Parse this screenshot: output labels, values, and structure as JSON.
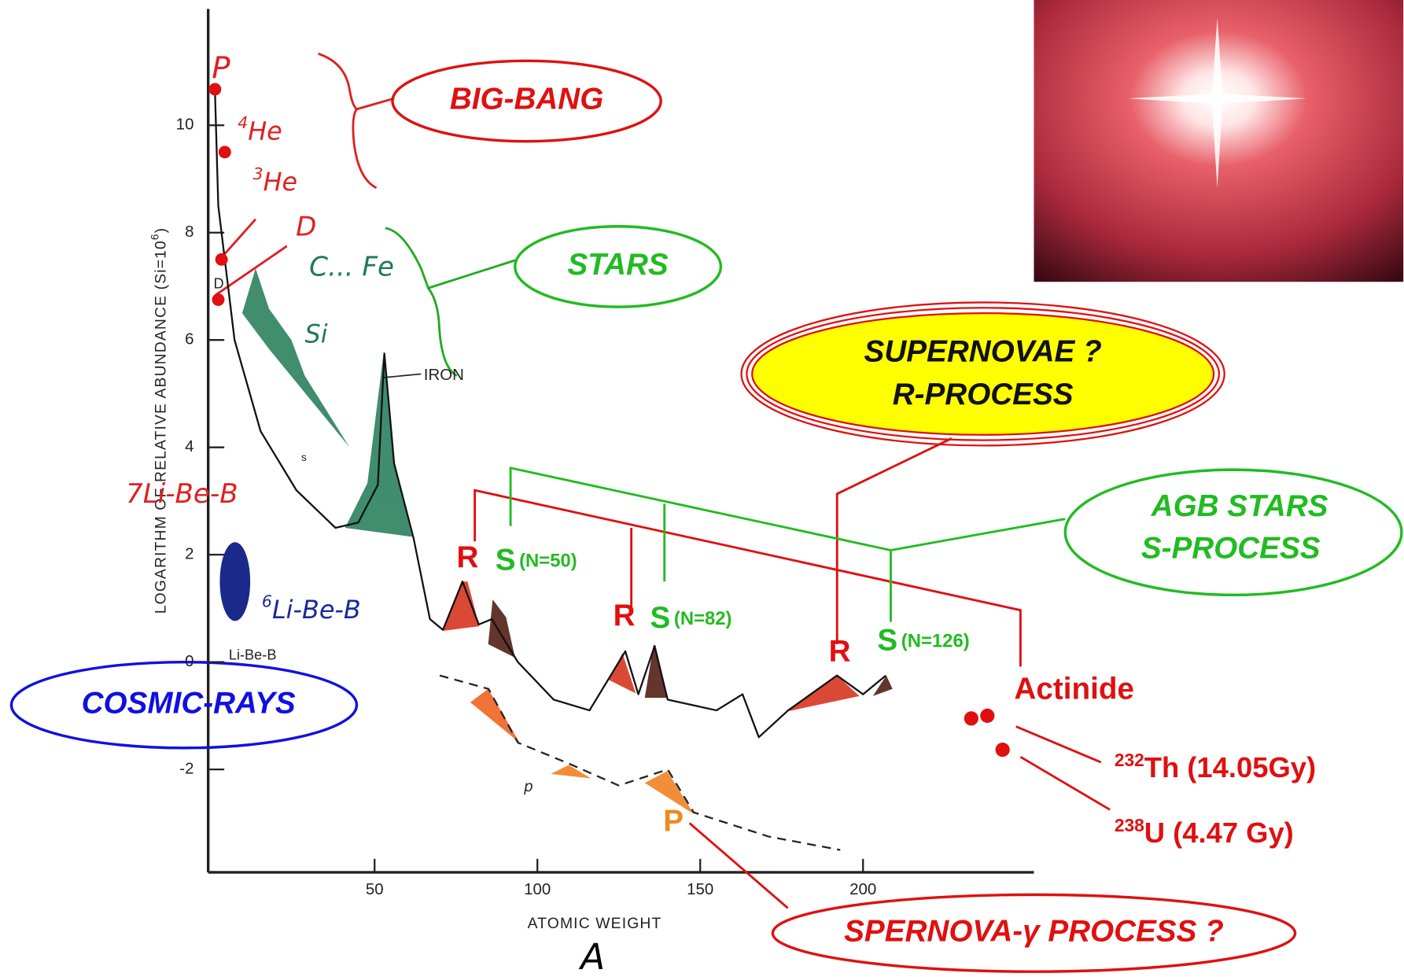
{
  "chart_data": {
    "type": "line",
    "y_label": "LOGARITHM OF RELATIVE ABUNDANCE (Si=10",
    "y_label_sup": "6",
    "y_label_end": ")",
    "x_label": "ATOMIC WEIGHT",
    "x_symbol": "A",
    "xlim": [
      0,
      250
    ],
    "ylim": [
      -4,
      12
    ],
    "xticks": [
      50,
      100,
      150,
      200
    ],
    "yticks": [
      -2,
      0,
      2,
      4,
      6,
      8,
      10
    ],
    "series": [
      {
        "color": "#111111",
        "dashed": false,
        "x": [
          1,
          2,
          7,
          15,
          26,
          38,
          45,
          51,
          53,
          56,
          62,
          67,
          71,
          77,
          82,
          86,
          94,
          105,
          116,
          127,
          131,
          136,
          140,
          155,
          163,
          168,
          177,
          192,
          200,
          207
        ],
        "values": [
          10.6,
          8.5,
          6.0,
          4.3,
          3.2,
          2.5,
          2.6,
          3.3,
          5.75,
          3.7,
          2.3,
          0.8,
          0.6,
          1.5,
          0.7,
          0.8,
          0,
          -0.7,
          -0.9,
          0.2,
          -0.6,
          0.3,
          -0.7,
          -0.9,
          -0.6,
          -1.4,
          -0.9,
          -0.25,
          -0.6,
          -0.25
        ]
      },
      {
        "color": "#222222",
        "dashed": true,
        "x": [
          70,
          85,
          94,
          110,
          125,
          140,
          148,
          171,
          193
        ],
        "values": [
          -0.25,
          -0.5,
          -1.5,
          -1.9,
          -2.3,
          -2.0,
          -2.8,
          -3.25,
          -3.5
        ]
      }
    ],
    "points": {
      "color": "#e01010",
      "x": [
        1,
        4,
        3,
        2
      ],
      "values": [
        10.67,
        9.5,
        7.5,
        6.75
      ]
    },
    "annotations": {
      "p": "P",
      "he4_sup": "4",
      "he4": "He",
      "he3_sup": "3",
      "he3": "He",
      "d": "D",
      "d_small": "D",
      "c_fe": "C... Fe",
      "si": "Si",
      "iron": "IRON",
      "s_small": "s",
      "li7_sup": "7",
      "li7": "Li-Be-B",
      "li6_sup": "6",
      "li6": "Li-Be-B",
      "libeb": "Li-Be-B",
      "p_small": "p",
      "big_bang": "BIG-BANG",
      "stars": "STARS",
      "supernovae": "SUPERNOVAE ?",
      "r_process": "R-PROCESS",
      "agb": "AGB STARS",
      "s_process": "S-PROCESS",
      "cosmic": "COSMIC-RAYS",
      "r1": "R",
      "s1": "S",
      "n50": "(N=50)",
      "r2": "R",
      "s2": "S",
      "n82": "(N=82)",
      "r3": "R",
      "s3": "S",
      "n126": "(N=126)",
      "actinide": "Actinide",
      "th_sup": "232",
      "th": "Th (14.05Gy)",
      "u_sup": "238",
      "u": "U (4.47 Gy)",
      "p_orange": "P",
      "gamma": "SPERNOVA-γ PROCESS ?"
    }
  }
}
